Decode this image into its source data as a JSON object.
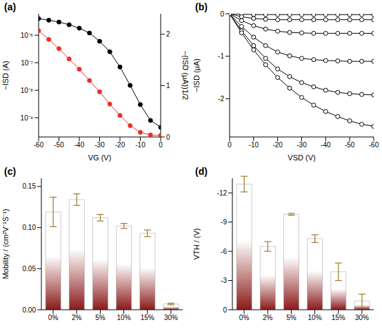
{
  "chart_data": [
    {
      "type": "line",
      "title": "(a)",
      "x_label": "VG (V)",
      "y_label": "−ISD (A)",
      "y2_label": "−(ISD (μA))1/2",
      "x": [
        -60,
        -55,
        -50,
        -45,
        -40,
        -35,
        -30,
        -25,
        -20,
        -15,
        -10,
        -5,
        0
      ],
      "xlim": [
        -60,
        0
      ],
      "xticks": [
        -60,
        -50,
        -40,
        -30,
        -20,
        -10,
        0
      ],
      "log": "y",
      "ylim": [
        2e-10,
        6e-06
      ],
      "yticks": [
        {
          "value": 1e-09,
          "label": "10⁻⁹"
        },
        {
          "value": 1e-08,
          "label": "10⁻⁸"
        },
        {
          "value": 1e-07,
          "label": "10⁻⁷"
        },
        {
          "value": 1e-06,
          "label": "10⁻⁶"
        }
      ],
      "y2lim": [
        0,
        2.4
      ],
      "y2ticks": [
        0,
        1,
        2
      ],
      "series": [
        {
          "color": "#000000",
          "marker": "circle",
          "values": [
            4e-06,
            3.5e-06,
            3e-06,
            2.4e-06,
            1.8e-06,
            1.2e-06,
            6e-07,
            2.5e-07,
            7e-08,
            1.5e-08,
            3e-09,
            8e-10,
            4.5e-10
          ]
        },
        {
          "color": "#e8302a",
          "marker": "circle",
          "axis": "y2",
          "values": [
            2.07,
            1.9,
            1.72,
            1.52,
            1.32,
            1.1,
            0.88,
            0.64,
            0.42,
            0.22,
            0.09,
            0.04,
            0.03
          ]
        }
      ]
    },
    {
      "type": "line",
      "title": "(b)",
      "x_label": "VSD (V)",
      "y_label": "−ISD (μA)",
      "x": [
        0,
        -5,
        -10,
        -15,
        -20,
        -25,
        -30,
        -35,
        -40,
        -45,
        -50,
        -55,
        -60
      ],
      "xlim": [
        0,
        -60
      ],
      "xticks": [
        0,
        -10,
        -20,
        -30,
        -40,
        -50,
        -60
      ],
      "ylim": [
        -2.9,
        0
      ],
      "yticks": [
        -2,
        -1,
        0
      ],
      "series": [
        {
          "color": "#000000",
          "marker": "circle_open",
          "values": [
            0,
            -0.01,
            -0.02,
            -0.02,
            -0.02,
            -0.02,
            -0.02,
            -0.02,
            -0.02,
            -0.02,
            -0.02,
            -0.02,
            -0.02
          ]
        },
        {
          "color": "#000000",
          "marker": "circle_open",
          "values": [
            0,
            -0.07,
            -0.11,
            -0.13,
            -0.14,
            -0.14,
            -0.14,
            -0.14,
            -0.14,
            -0.14,
            -0.14,
            -0.14,
            -0.14
          ]
        },
        {
          "color": "#000000",
          "marker": "circle_open",
          "values": [
            0,
            -0.16,
            -0.28,
            -0.36,
            -0.41,
            -0.44,
            -0.45,
            -0.46,
            -0.46,
            -0.46,
            -0.46,
            -0.46,
            -0.46
          ]
        },
        {
          "color": "#000000",
          "marker": "circle_open",
          "values": [
            0,
            -0.3,
            -0.55,
            -0.75,
            -0.9,
            -0.99,
            -1.05,
            -1.08,
            -1.1,
            -1.11,
            -1.12,
            -1.12,
            -1.12
          ]
        },
        {
          "color": "#000000",
          "marker": "circle_open",
          "values": [
            0,
            -0.4,
            -0.75,
            -1.05,
            -1.3,
            -1.48,
            -1.62,
            -1.72,
            -1.8,
            -1.85,
            -1.88,
            -1.9,
            -1.91
          ]
        },
        {
          "color": "#000000",
          "marker": "circle_open",
          "values": [
            0,
            -0.45,
            -0.85,
            -1.2,
            -1.5,
            -1.75,
            -1.97,
            -2.15,
            -2.3,
            -2.42,
            -2.52,
            -2.6,
            -2.65
          ]
        }
      ]
    },
    {
      "type": "bar",
      "title": "(c)",
      "y_label": "Mobility / (cm²V⁻¹S⁻¹)",
      "categories": [
        "0%",
        "2%",
        "5%",
        "10%",
        "15%",
        "30%"
      ],
      "values": [
        0.119,
        0.134,
        0.112,
        0.102,
        0.093,
        0.007
      ],
      "errors": [
        0.018,
        0.007,
        0.004,
        0.003,
        0.004,
        0.001
      ],
      "color": "#8b1a1a",
      "ylim": [
        0,
        0.16
      ],
      "yticks": [
        {
          "value": 0,
          "label": "0.00"
        },
        {
          "value": 0.05,
          "label": "0.05"
        },
        {
          "value": 0.1,
          "label": "0.10"
        },
        {
          "value": 0.15,
          "label": "0.15"
        }
      ]
    },
    {
      "type": "bar",
      "title": "(d)",
      "y_label": "VTH / (V)",
      "categories": [
        "0%",
        "2%",
        "5%",
        "10%",
        "15%",
        "30%"
      ],
      "values": [
        -12.9,
        -6.5,
        -9.8,
        -7.3,
        -3.9,
        -0.9
      ],
      "errors": [
        0.8,
        0.5,
        0.1,
        0.4,
        0.9,
        0.7
      ],
      "color": "#8b1a1a",
      "ylim": [
        0,
        -13.5
      ],
      "yticks": [
        0,
        -3,
        -6,
        -9,
        -12
      ]
    }
  ]
}
